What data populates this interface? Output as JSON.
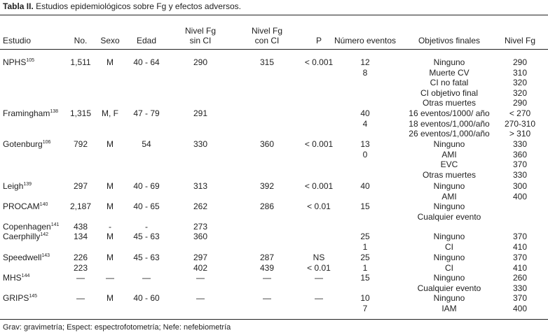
{
  "caption": {
    "label": "Tabla II.",
    "text": "Estudios epidemiológicos sobre Fg y efectos adversos."
  },
  "headers": {
    "estudio": "Estudio",
    "no": "No.",
    "sexo": "Sexo",
    "edad": "Edad",
    "fg_sin_1": "Nivel Fg",
    "fg_sin_2": "sin CI",
    "fg_con_1": "Nivel Fg",
    "fg_con_2": "con CI",
    "p": "P",
    "eventos": "Número eventos",
    "objetivos": "Objetivos finales",
    "nivel": "Nivel Fg"
  },
  "rows": [
    {
      "study": "NPHS",
      "ref": "105",
      "no": "1,511",
      "sexo": "M",
      "edad": "40 - 64",
      "sin": "290",
      "con": "315",
      "p": "< 0.001",
      "eventos": [
        "12",
        "8",
        "",
        "",
        ""
      ],
      "objetivos": [
        "Ninguno",
        "Muerte CV",
        "CI no fatal",
        "CI objetivo final",
        "Otras muertes"
      ],
      "nivel": [
        "290",
        "310",
        "320",
        "320",
        "290"
      ]
    },
    {
      "study": "Framingham",
      "ref": "138",
      "no": "1,315",
      "sexo": "M, F",
      "edad": "47 - 79",
      "sin": "291",
      "con": "",
      "p": "",
      "eventos": [
        "40",
        "4",
        ""
      ],
      "objetivos": [
        "16 eventos/1000/ año",
        "18 eventos/1,000/año",
        "26 eventos/1,000/año"
      ],
      "nivel": [
        "< 270",
        "270-310",
        "> 310"
      ]
    },
    {
      "study": "Gotenburg",
      "ref": "106",
      "no": "792",
      "sexo": "M",
      "edad": "54",
      "sin": "330",
      "con": "360",
      "p": "< 0.001",
      "eventos": [
        "13",
        "0",
        "",
        ""
      ],
      "objetivos": [
        "Ninguno",
        "AMI",
        "EVC",
        "Otras muertes"
      ],
      "nivel": [
        "330",
        "360",
        "370",
        "330"
      ]
    },
    {
      "study": "Leigh",
      "ref": "139",
      "no": "297",
      "sexo": "M",
      "edad": "40 - 69",
      "sin": "313",
      "con": "392",
      "p": "< 0.001",
      "eventos": [
        "40",
        ""
      ],
      "objetivos": [
        "Ninguno",
        "AMI"
      ],
      "nivel": [
        "300",
        "400"
      ]
    },
    {
      "study": "PROCAM",
      "ref": "140",
      "no": "2,187",
      "sexo": "M",
      "edad": "40 - 65",
      "sin": "262",
      "con": "286",
      "p": "< 0.01",
      "eventos": [
        "15",
        ""
      ],
      "objetivos": [
        "Ninguno",
        "Cualquier evento"
      ],
      "nivel": [
        "",
        ""
      ]
    },
    {
      "study": "Copenhagen",
      "ref": "141",
      "no": "438",
      "sexo": "-",
      "edad": "-",
      "sin": "273",
      "con": "",
      "p": "",
      "eventos": [
        ""
      ],
      "objetivos": [
        ""
      ],
      "nivel": [
        ""
      ]
    },
    {
      "study": "Caerphilly",
      "ref": "142",
      "no": "134",
      "sexo": "M",
      "edad": "45 - 63",
      "sin": "360",
      "con": "",
      "p": "",
      "eventos": [
        "25",
        "1"
      ],
      "objetivos": [
        "Ninguno",
        "CI"
      ],
      "nivel": [
        "370",
        "410"
      ]
    },
    {
      "study": "Speedwell",
      "ref": "143",
      "no": "226",
      "sexo": "M",
      "edad": "45 - 63",
      "sin": "297",
      "con": "287",
      "p": "NS",
      "eventos": [
        "25",
        "1"
      ],
      "objetivos": [
        "Ninguno",
        "CI"
      ],
      "nivel": [
        "370",
        "410"
      ],
      "no2": "223",
      "sin2": "402",
      "con2": "439",
      "p2": "< 0.01"
    },
    {
      "study": "MHS",
      "ref": "144",
      "no": "—",
      "sexo": "—",
      "edad": "—",
      "sin": "—",
      "con": "—",
      "p": "—",
      "eventos": [
        "15",
        ""
      ],
      "objetivos": [
        "Ninguno",
        "Cualquier evento"
      ],
      "nivel": [
        "260",
        "330"
      ]
    },
    {
      "study": "GRIPS",
      "ref": "145",
      "no": "—",
      "sexo": "M",
      "edad": "40 - 60",
      "sin": "—",
      "con": "—",
      "p": "—",
      "eventos": [
        "10",
        "7"
      ],
      "objetivos": [
        "Ninguno",
        "IAM"
      ],
      "nivel": [
        "370",
        "400"
      ]
    }
  ],
  "footnote": "Grav: gravimetría; Espect: espectrofotometría; Nefe: nefebiometría"
}
